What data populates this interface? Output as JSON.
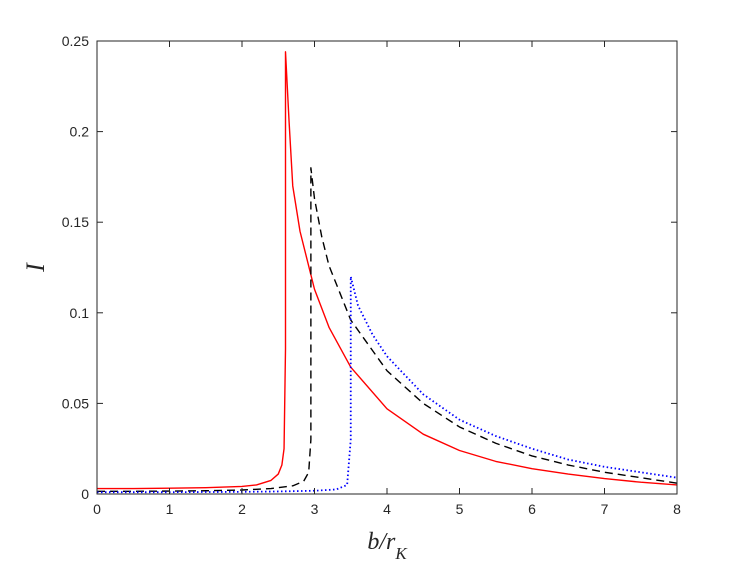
{
  "chart_data": {
    "type": "line",
    "xlabel": "b/r_K",
    "ylabel": "I",
    "xlim": [
      0,
      8
    ],
    "ylim": [
      0,
      0.25
    ],
    "xticks": [
      "0",
      "1",
      "2",
      "3",
      "4",
      "5",
      "6",
      "7",
      "8"
    ],
    "yticks": [
      "0",
      "0.05",
      "0.1",
      "0.15",
      "0.2",
      "0.25"
    ],
    "grid": false,
    "legend": "none",
    "series": [
      {
        "color": "#ff0000",
        "style": "solid",
        "x": [
          0,
          0.5,
          1,
          1.5,
          2,
          2.2,
          2.4,
          2.5,
          2.55,
          2.58,
          2.6,
          2.6,
          2.65,
          2.7,
          2.8,
          3.0,
          3.2,
          3.5,
          4.0,
          4.5,
          5.0,
          5.5,
          6.0,
          6.5,
          7.0,
          7.5,
          8.0
        ],
        "y": [
          0.003,
          0.003,
          0.0032,
          0.0035,
          0.0042,
          0.005,
          0.0075,
          0.011,
          0.016,
          0.025,
          0.08,
          0.244,
          0.205,
          0.17,
          0.145,
          0.113,
          0.092,
          0.07,
          0.047,
          0.033,
          0.024,
          0.018,
          0.014,
          0.011,
          0.0085,
          0.0065,
          0.005
        ]
      },
      {
        "color": "#000000",
        "style": "dashed",
        "x": [
          0,
          0.5,
          1,
          1.5,
          2,
          2.4,
          2.7,
          2.85,
          2.92,
          2.95,
          2.95,
          3.0,
          3.1,
          3.2,
          3.5,
          4.0,
          4.5,
          5.0,
          5.5,
          6.0,
          6.5,
          7.0,
          7.5,
          8.0
        ],
        "y": [
          0.0015,
          0.0015,
          0.0016,
          0.0018,
          0.0022,
          0.003,
          0.0045,
          0.007,
          0.012,
          0.03,
          0.18,
          0.163,
          0.142,
          0.126,
          0.096,
          0.068,
          0.05,
          0.037,
          0.028,
          0.021,
          0.016,
          0.012,
          0.009,
          0.006
        ]
      },
      {
        "color": "#0000ff",
        "style": "dotted",
        "x": [
          0,
          0.5,
          1,
          1.5,
          2,
          2.5,
          3.0,
          3.3,
          3.45,
          3.5,
          3.5,
          3.6,
          3.8,
          4.0,
          4.5,
          5.0,
          5.5,
          6.0,
          6.5,
          7.0,
          7.5,
          8.0
        ],
        "y": [
          0.001,
          0.001,
          0.001,
          0.0011,
          0.0012,
          0.0014,
          0.0018,
          0.0025,
          0.005,
          0.03,
          0.12,
          0.104,
          0.088,
          0.076,
          0.055,
          0.041,
          0.032,
          0.025,
          0.019,
          0.015,
          0.012,
          0.009
        ]
      }
    ]
  }
}
